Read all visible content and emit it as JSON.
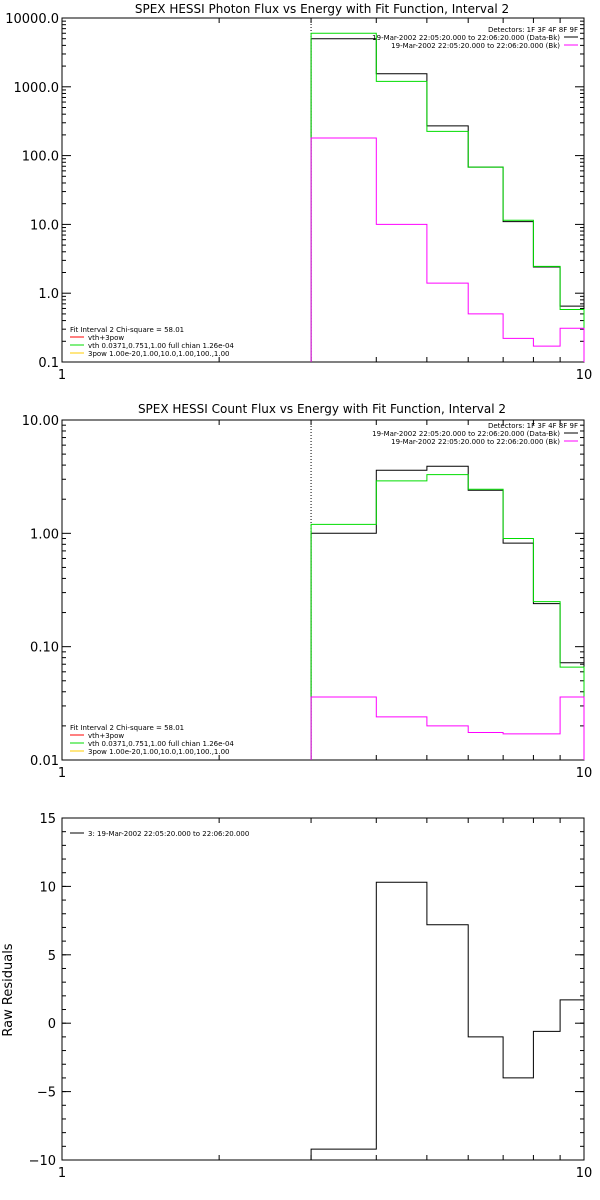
{
  "chart_data": [
    {
      "type": "line",
      "title": "SPEX HESSI Photon Flux vs Energy with Fit Function, Interval 2",
      "xscale": "log",
      "yscale": "log",
      "xlim": [
        1,
        10
      ],
      "ylim": [
        0.1,
        10000
      ],
      "x_ticks": [
        "1",
        "10"
      ],
      "y_ticks": [
        "0.1",
        "1.0",
        "10.0",
        "100.0",
        "1000.0",
        "10000.0"
      ],
      "vline_x": 3,
      "legend_top_right": [
        "Detectors: 1F 3F 4F 8F 9F",
        "19-Mar-2002 22:05:20.000 to 22:06:20.000 (Data-Bk)",
        "19-Mar-2002 22:05:20.000 to 22:06:20.000 (Bk)"
      ],
      "legend_bottom_left": [
        "Fit Interval 2   Chi-square = 58.01",
        "vth+3pow",
        "vth 0.0371,0.751,1.00  full chian 1.26e-04",
        "3pow 1.00e-20,1.00,10.0,1.00,100.,1.00"
      ],
      "edges": [
        3,
        4,
        5,
        6,
        7,
        8,
        9,
        10
      ],
      "series": [
        {
          "name": "19-Mar-2002 22:05:20.000 to 22:06:20.000 (Data-Bk)",
          "color": "#000000",
          "values": [
            5000,
            1550,
            270,
            68,
            11,
            2.4,
            0.65
          ]
        },
        {
          "name": "vth+3pow",
          "color": "#00dd00",
          "values": [
            6000,
            1200,
            225,
            68,
            11.5,
            2.45,
            0.58
          ]
        },
        {
          "name": "19-Mar-2002 22:05:20.000 to 22:06:20.000 (Bk)",
          "color": "#ff00ff",
          "values": [
            180,
            10,
            1.4,
            0.5,
            0.22,
            0.17,
            0.31
          ]
        }
      ]
    },
    {
      "type": "line",
      "title": "SPEX HESSI Count Flux vs Energy with Fit Function, Interval 2",
      "xscale": "log",
      "yscale": "log",
      "xlim": [
        1,
        10
      ],
      "ylim": [
        0.01,
        10
      ],
      "x_ticks": [
        "1",
        "10"
      ],
      "y_ticks": [
        "0.01",
        "0.10",
        "1.00",
        "10.00"
      ],
      "vline_x": 3,
      "legend_top_right": [
        "Detectors: 1F 3F 4F 8F 9F",
        "19-Mar-2002 22:05:20.000 to 22:06:20.000 (Data-Bk)",
        "19-Mar-2002 22:05:20.000 to 22:06:20.000 (Bk)"
      ],
      "legend_bottom_left": [
        "Fit Interval 2   Chi-square = 58.01",
        "vth+3pow",
        "vth 0.0371,0.751,1.00  full chian 1.26e-04",
        "3pow 1.00e-20,1.00,10.0,1.00,100.,1.00"
      ],
      "edges": [
        3,
        4,
        5,
        6,
        7,
        8,
        9,
        10
      ],
      "series": [
        {
          "name": "19-Mar-2002 22:05:20.000 to 22:06:20.000 (Data-Bk)",
          "color": "#000000",
          "values": [
            1.0,
            3.6,
            3.9,
            2.4,
            0.82,
            0.24,
            0.072
          ]
        },
        {
          "name": "vth+3pow",
          "color": "#00dd00",
          "values": [
            1.2,
            2.9,
            3.3,
            2.45,
            0.9,
            0.25,
            0.066
          ]
        },
        {
          "name": "19-Mar-2002 22:05:20.000 to 22:06:20.000 (Bk)",
          "color": "#ff00ff",
          "values": [
            0.036,
            0.024,
            0.02,
            0.0175,
            0.017,
            0.017,
            0.036
          ]
        }
      ]
    },
    {
      "type": "line",
      "ylabel": "Raw Residuals",
      "xscale": "log",
      "yscale": "linear",
      "xlim": [
        1,
        10
      ],
      "ylim": [
        -10,
        15
      ],
      "x_ticks": [
        "1",
        "10"
      ],
      "y_ticks": [
        "-10",
        "-5",
        "0",
        "5",
        "10",
        "15"
      ],
      "legend_top_left": [
        "3: 19-Mar-2002 22:05:20.000 to 22:06:20.000"
      ],
      "edges": [
        3,
        4,
        5,
        6,
        7,
        8,
        9,
        10
      ],
      "series": [
        {
          "name": "3: 19-Mar-2002 22:05:20.000 to 22:06:20.000",
          "color": "#000000",
          "values": [
            -9.2,
            10.3,
            7.2,
            -1.0,
            -4.0,
            -0.6,
            1.7
          ]
        }
      ]
    }
  ]
}
